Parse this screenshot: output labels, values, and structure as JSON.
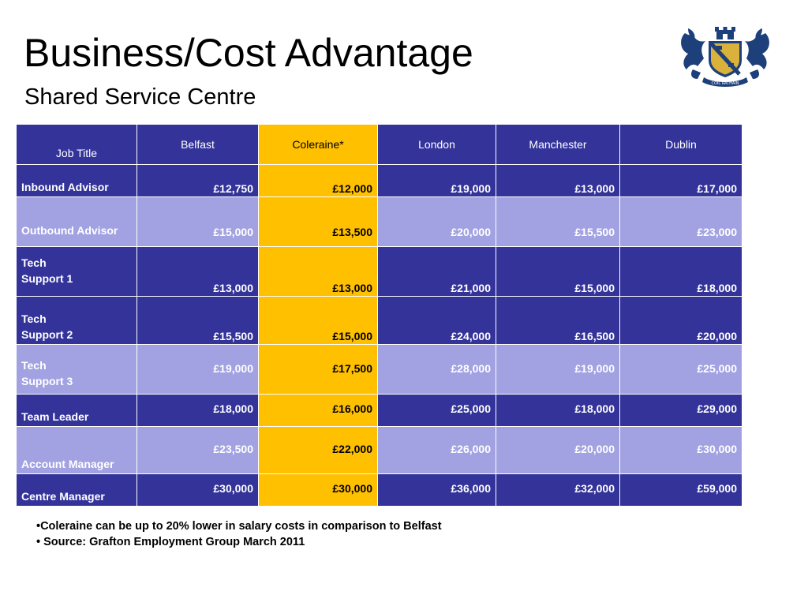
{
  "slide": {
    "title": "Business/Cost Advantage",
    "subtitle": "Shared Service Centre",
    "crest_motto": "COIL RATHAIN"
  },
  "table": {
    "headers": [
      "Job Title",
      "Belfast",
      "Coleraine*",
      "London",
      "Manchester",
      "Dublin"
    ],
    "rows": [
      {
        "title": "Inbound Advisor",
        "values": [
          "£12,750",
          "£12,000",
          "£19,000",
          "£13,000",
          "£17,000"
        ]
      },
      {
        "title": "Outbound Advisor",
        "values": [
          "£15,000",
          "£13,500",
          "£20,000",
          "£15,500",
          "£23,000"
        ]
      },
      {
        "title": "Tech\nSupport 1",
        "values": [
          "£13,000",
          "£13,000",
          "£21,000",
          "£15,000",
          "£18,000"
        ]
      },
      {
        "title": "Tech\nSupport 2",
        "values": [
          "£15,500",
          "£15,000",
          "£24,000",
          "£16,500",
          "£20,000"
        ]
      },
      {
        "title": "Tech\nSupport 3",
        "values": [
          "£19,000",
          "£17,500",
          "£28,000",
          "£19,000",
          "£25,000"
        ]
      },
      {
        "title": "Team Leader",
        "values": [
          "£18,000",
          "£16,000",
          "£25,000",
          "£18,000",
          "£29,000"
        ]
      },
      {
        "title": "Account Manager",
        "values": [
          "£23,500",
          "£22,000",
          "£26,000",
          "£20,000",
          "£30,000"
        ]
      },
      {
        "title": "Centre Manager",
        "values": [
          "£30,000",
          "£30,000",
          "£36,000",
          "£32,000",
          "£59,000"
        ]
      }
    ]
  },
  "notes": [
    "•Coleraine can be up to 20% lower in salary costs in comparison to Belfast",
    "• Source: Grafton Employment Group March 2011"
  ],
  "colors": {
    "dark_row": "#33339a",
    "light_row": "#a2a2e2",
    "highlight_column": "#ffc000",
    "crest_blue": "#1d3f7a",
    "crest_gold": "#d9b13b"
  }
}
